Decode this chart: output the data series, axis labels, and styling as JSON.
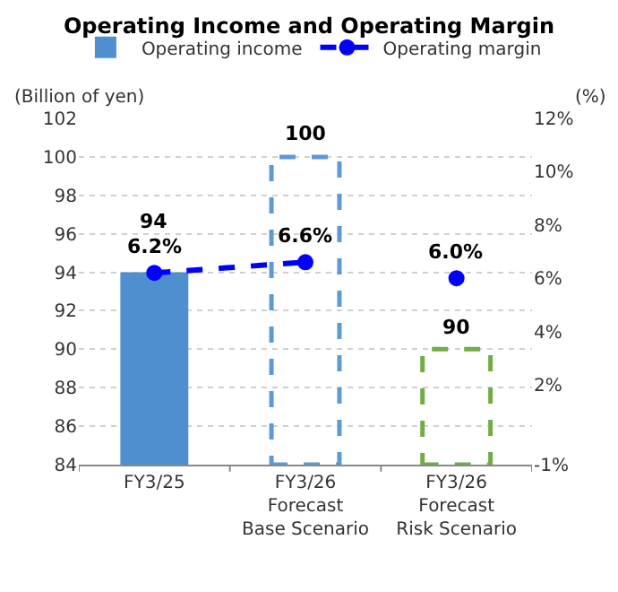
{
  "chart_data": {
    "type": "bar",
    "title": "Operating Income and Operating Margin",
    "ylabel": "(Billion of yen)",
    "y2label": "(%)",
    "categories": [
      "FY3/25",
      "FY3/26\nForecast\nBase Scenario",
      "FY3/26\nForecast\nRisk Scenario"
    ],
    "series": [
      {
        "name": "Operating income",
        "color": "#4f8fd0",
        "values": [
          94,
          null,
          null
        ],
        "value_labels": [
          "94",
          null,
          null
        ]
      },
      {
        "color": "#5b9bd5",
        "line_style": "dashed",
        "values": [
          null,
          100,
          null
        ],
        "value_labels": [
          null,
          "100",
          null
        ]
      },
      {
        "color": "#70ad47",
        "line_style": "dashed",
        "values": [
          null,
          null,
          90
        ],
        "value_labels": [
          null,
          null,
          "90"
        ]
      },
      {
        "type": "line",
        "name": "Operating margin",
        "axis": "y2",
        "color": "#0000ff",
        "line_style": "dashed",
        "marker": "circle",
        "values": [
          6.2,
          6.6,
          null
        ],
        "value_labels": [
          "6.2%",
          "6.6%",
          null
        ]
      },
      {
        "type": "scatter",
        "axis": "y2",
        "color": "#0000ff",
        "marker": "circle",
        "values": [
          null,
          null,
          6.0
        ],
        "value_labels": [
          null,
          null,
          "6.0%"
        ]
      }
    ],
    "ylim": [
      84,
      102
    ],
    "yticks": [
      84,
      86,
      88,
      90,
      92,
      94,
      96,
      98,
      100,
      102
    ],
    "y2lim": [
      -1,
      12
    ],
    "y2ticks": [
      {
        "value": -1,
        "label": "-1%"
      },
      {
        "value": 2,
        "label": "2%"
      },
      {
        "value": 4,
        "label": "4%"
      },
      {
        "value": 6,
        "label": "6%"
      },
      {
        "value": 8,
        "label": "8%"
      },
      {
        "value": 10,
        "label": "10%"
      },
      {
        "value": 12,
        "label": "12%"
      }
    ],
    "grid": "y",
    "legend": "top"
  }
}
